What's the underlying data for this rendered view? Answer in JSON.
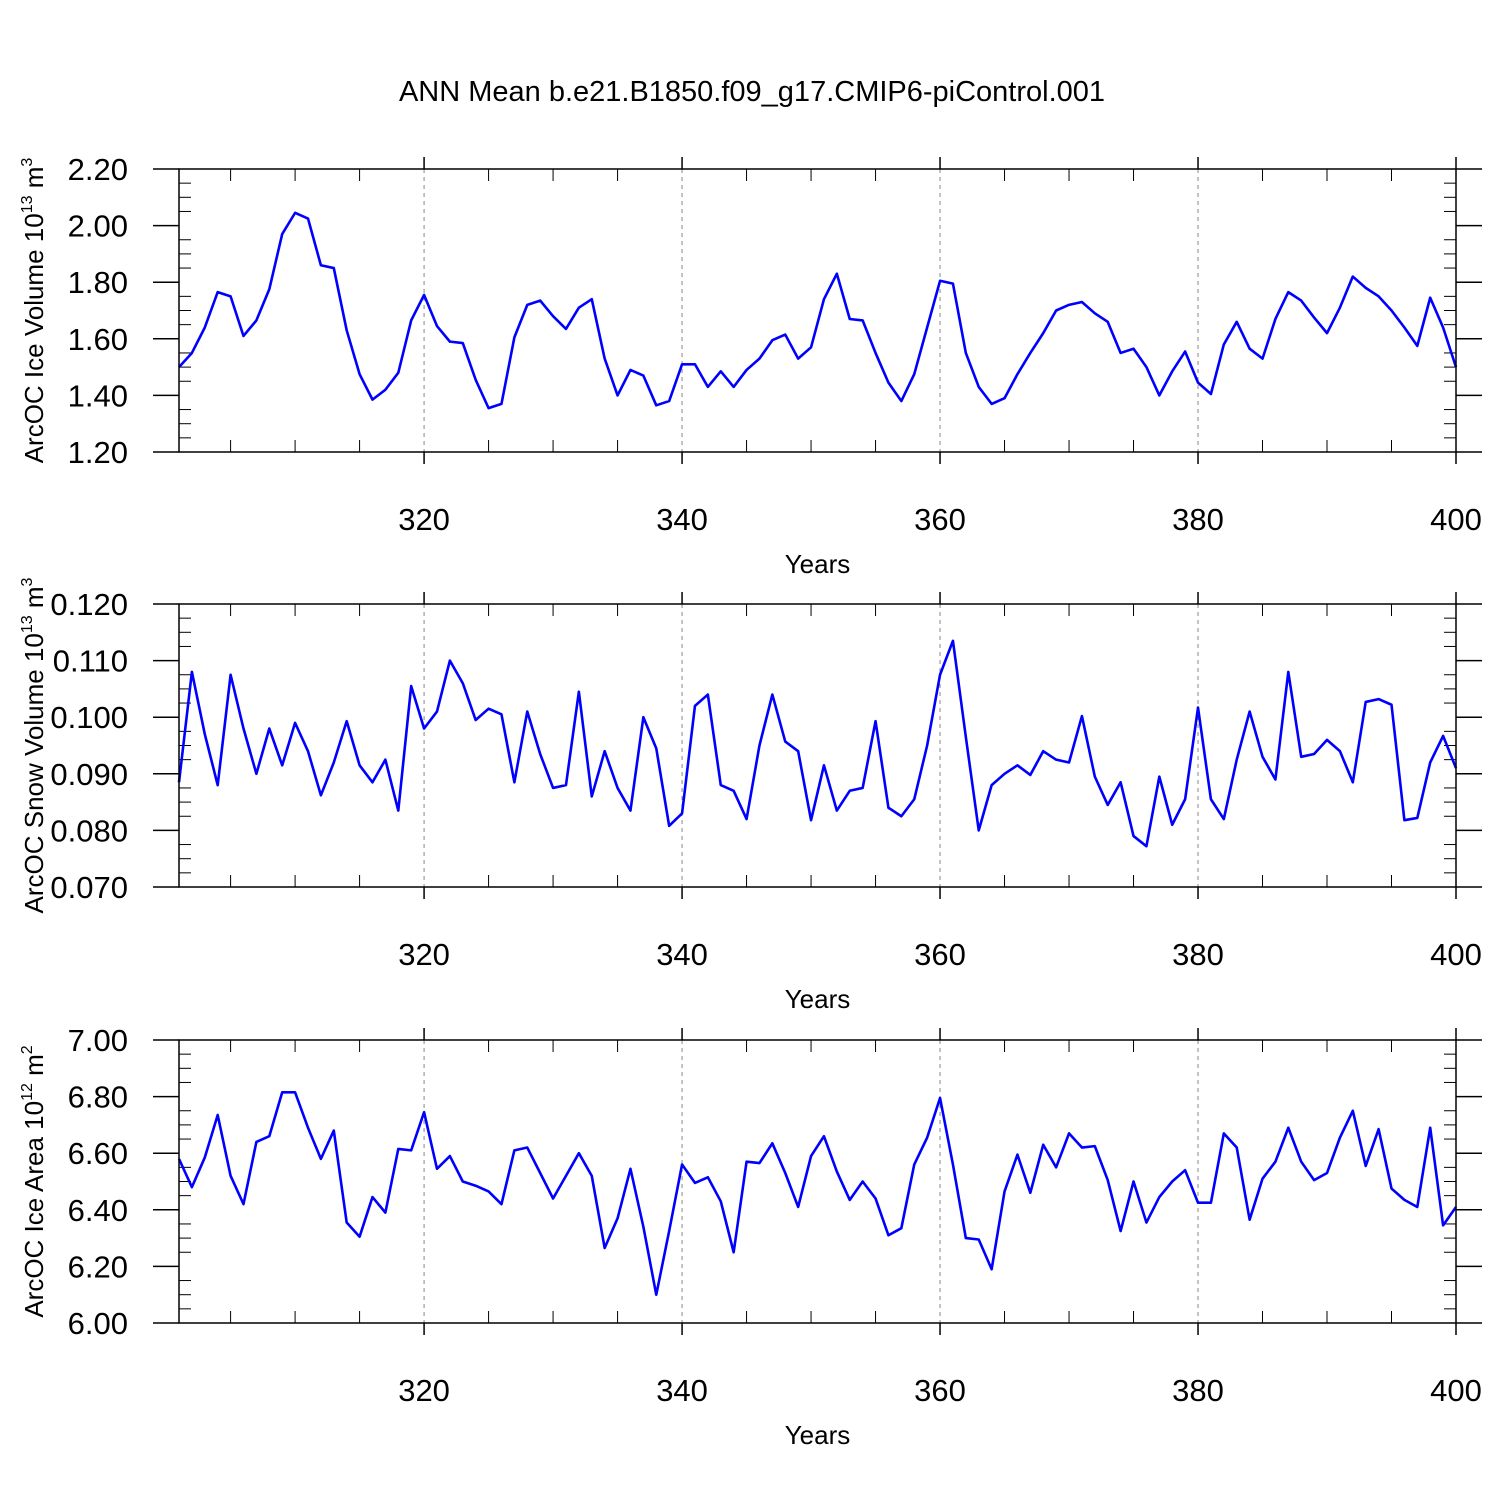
{
  "title": "ANN Mean b.e21.B1850.f09_g17.CMIP6-piControl.001",
  "line_color": "#0000ff",
  "chart_data": [
    {
      "type": "line",
      "title": "",
      "xlabel": "Years",
      "ylabel": {
        "text": "ArcOC Ice Volume 10",
        "exponent": "13",
        "unit": " m",
        "unit_exponent": "3"
      },
      "xlim": [
        301,
        400
      ],
      "ylim": [
        1.2,
        2.2
      ],
      "xticks": [
        320,
        340,
        360,
        380,
        400
      ],
      "xtick_labels": [
        "320",
        "340",
        "360",
        "380",
        "400"
      ],
      "yticks": [
        1.2,
        1.4,
        1.6,
        1.8,
        2.0,
        2.2
      ],
      "ytick_labels": [
        "1.20",
        "1.40",
        "1.60",
        "1.80",
        "2.00",
        "2.20"
      ],
      "grid": "vertical dashed at major x ticks",
      "series": [
        {
          "x_start": 301,
          "values": [
            1.5,
            1.55,
            1.64,
            1.765,
            1.75,
            1.61,
            1.665,
            1.775,
            1.97,
            2.045,
            2.025,
            1.86,
            1.85,
            1.63,
            1.475,
            1.385,
            1.42,
            1.48,
            1.665,
            1.755,
            1.645,
            1.59,
            1.585,
            1.455,
            1.355,
            1.37,
            1.605,
            1.72,
            1.735,
            1.68,
            1.635,
            1.71,
            1.74,
            1.53,
            1.4,
            1.49,
            1.47,
            1.365,
            1.38,
            1.51,
            1.51,
            1.43,
            1.485,
            1.43,
            1.49,
            1.53,
            1.595,
            1.615,
            1.53,
            1.57,
            1.74,
            1.83,
            1.67,
            1.665,
            1.55,
            1.445,
            1.38,
            1.475,
            1.64,
            1.805,
            1.795,
            1.55,
            1.43,
            1.37,
            1.39,
            1.475,
            1.55,
            1.62,
            1.7,
            1.72,
            1.73,
            1.69,
            1.66,
            1.55,
            1.565,
            1.5,
            1.4,
            1.485,
            1.555,
            1.445,
            1.405,
            1.58,
            1.66,
            1.565,
            1.53,
            1.67,
            1.765,
            1.735,
            1.675,
            1.62,
            1.71,
            1.82,
            1.78,
            1.75,
            1.7,
            1.64,
            1.575,
            1.745,
            1.64,
            1.5
          ]
        }
      ]
    },
    {
      "type": "line",
      "title": "",
      "xlabel": "Years",
      "ylabel": {
        "text": "ArcOC Snow Volume 10",
        "exponent": "13",
        "unit": " m",
        "unit_exponent": "3"
      },
      "xlim": [
        301,
        400
      ],
      "ylim": [
        0.07,
        0.12
      ],
      "xticks": [
        320,
        340,
        360,
        380,
        400
      ],
      "xtick_labels": [
        "320",
        "340",
        "360",
        "380",
        "400"
      ],
      "yticks": [
        0.07,
        0.08,
        0.09,
        0.1,
        0.11,
        0.12
      ],
      "ytick_labels": [
        "0.070",
        "0.080",
        "0.090",
        "0.100",
        "0.110",
        "0.120"
      ],
      "grid": "vertical dashed at major x ticks",
      "series": [
        {
          "x_start": 301,
          "values": [
            0.0885,
            0.108,
            0.097,
            0.088,
            0.1075,
            0.098,
            0.09,
            0.098,
            0.0915,
            0.099,
            0.094,
            0.0862,
            0.092,
            0.0993,
            0.0915,
            0.0885,
            0.0925,
            0.0835,
            0.1055,
            0.098,
            0.101,
            0.11,
            0.106,
            0.0995,
            0.1015,
            0.1005,
            0.0885,
            0.101,
            0.0935,
            0.0875,
            0.088,
            0.1045,
            0.086,
            0.094,
            0.0875,
            0.0835,
            0.1,
            0.0945,
            0.0808,
            0.083,
            0.102,
            0.104,
            0.088,
            0.087,
            0.082,
            0.095,
            0.104,
            0.0957,
            0.094,
            0.0818,
            0.0915,
            0.0835,
            0.087,
            0.0875,
            0.0993,
            0.084,
            0.0825,
            0.0855,
            0.095,
            0.1075,
            0.1135,
            0.0965,
            0.08,
            0.088,
            0.09,
            0.0915,
            0.0898,
            0.094,
            0.0925,
            0.092,
            0.1002,
            0.0895,
            0.0845,
            0.0885,
            0.079,
            0.0772,
            0.0895,
            0.081,
            0.0855,
            0.1017,
            0.0855,
            0.082,
            0.0925,
            0.101,
            0.093,
            0.089,
            0.108,
            0.093,
            0.0935,
            0.096,
            0.094,
            0.0885,
            0.1027,
            0.1032,
            0.1022,
            0.0818,
            0.0822,
            0.092,
            0.0967,
            0.091
          ]
        }
      ]
    },
    {
      "type": "line",
      "title": "",
      "xlabel": "Years",
      "ylabel": {
        "text": "ArcOC Ice Area 10",
        "exponent": "12",
        "unit": " m",
        "unit_exponent": "2"
      },
      "xlim": [
        301,
        400
      ],
      "ylim": [
        6.0,
        7.0
      ],
      "xticks": [
        320,
        340,
        360,
        380,
        400
      ],
      "xtick_labels": [
        "320",
        "340",
        "360",
        "380",
        "400"
      ],
      "yticks": [
        6.0,
        6.2,
        6.4,
        6.6,
        6.8,
        7.0
      ],
      "ytick_labels": [
        "6.00",
        "6.20",
        "6.40",
        "6.60",
        "6.80",
        "7.00"
      ],
      "grid": "vertical dashed at major x ticks",
      "series": [
        {
          "x_start": 301,
          "values": [
            6.58,
            6.48,
            6.585,
            6.735,
            6.52,
            6.42,
            6.64,
            6.66,
            6.815,
            6.815,
            6.69,
            6.58,
            6.68,
            6.355,
            6.305,
            6.445,
            6.39,
            6.615,
            6.61,
            6.745,
            6.545,
            6.59,
            6.5,
            6.485,
            6.465,
            6.42,
            6.61,
            6.62,
            6.53,
            6.44,
            6.52,
            6.6,
            6.52,
            6.265,
            6.37,
            6.545,
            6.34,
            6.1,
            6.325,
            6.56,
            6.495,
            6.515,
            6.43,
            6.25,
            6.57,
            6.565,
            6.635,
            6.53,
            6.41,
            6.59,
            6.66,
            6.535,
            6.435,
            6.5,
            6.44,
            6.31,
            6.335,
            6.56,
            6.655,
            6.795,
            6.56,
            6.3,
            6.295,
            6.19,
            6.465,
            6.595,
            6.46,
            6.63,
            6.55,
            6.67,
            6.62,
            6.625,
            6.505,
            6.325,
            6.5,
            6.355,
            6.445,
            6.5,
            6.54,
            6.425,
            6.425,
            6.67,
            6.62,
            6.365,
            6.51,
            6.57,
            6.69,
            6.57,
            6.505,
            6.53,
            6.655,
            6.75,
            6.555,
            6.685,
            6.475,
            6.435,
            6.41,
            6.69,
            6.345,
            6.41
          ]
        }
      ]
    }
  ]
}
